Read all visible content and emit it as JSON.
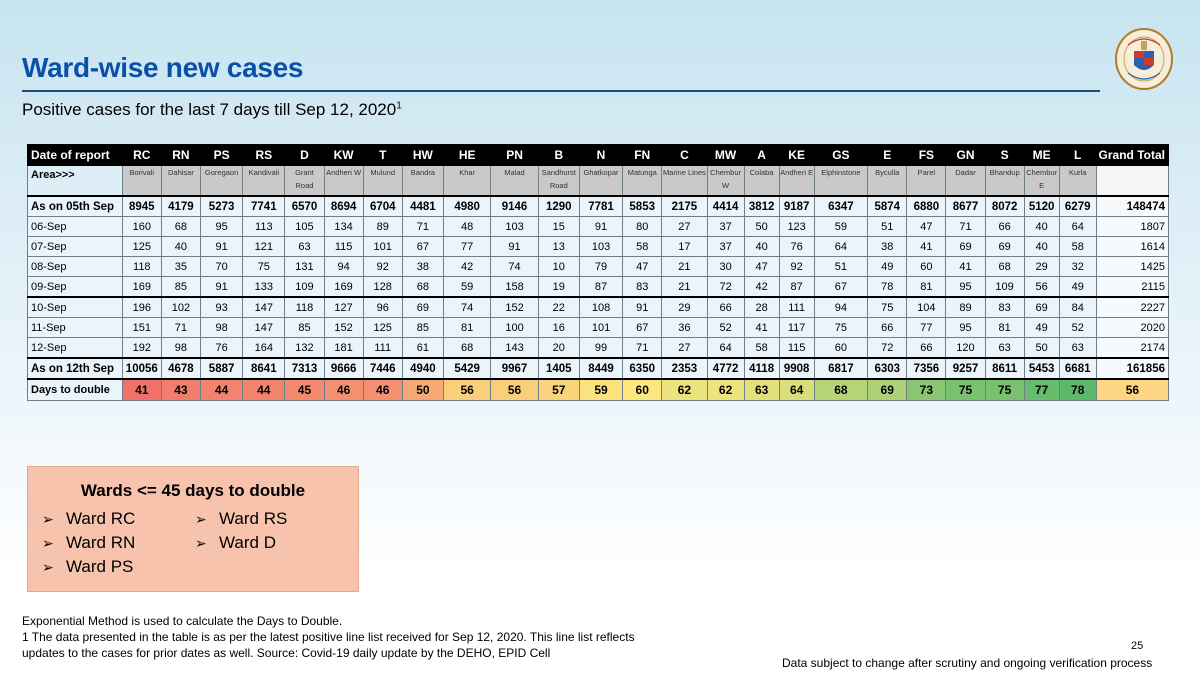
{
  "header": {
    "title": "Ward-wise new cases",
    "subtitle": "Positive cases for the last 7 days till Sep 12, 2020",
    "subtitle_footnote_marker": "1",
    "logo": "municipal-corporation-emblem"
  },
  "table": {
    "header_label": "Date of report",
    "area_label": "Area>>>",
    "grand_total_label": "Grand Total",
    "wards": [
      "RC",
      "RN",
      "PS",
      "RS",
      "D",
      "KW",
      "T",
      "HW",
      "HE",
      "PN",
      "B",
      "N",
      "FN",
      "C",
      "MW",
      "A",
      "KE",
      "GS",
      "E",
      "FS",
      "GN",
      "S",
      "ME",
      "L"
    ],
    "areas": [
      "Borivali",
      "Dahisar",
      "Goregaon",
      "Kandivali",
      "Grant Road",
      "Andheri W",
      "Mulund",
      "Bandra",
      "Khar",
      "Malad",
      "Sandhurst Road",
      "Ghatkopar",
      "Matunga",
      "Marine Lines",
      "Chembur W",
      "Colaba",
      "Andheri E",
      "Elphinstone",
      "Byculla",
      "Parel",
      "Dadar",
      "Bhandup",
      "Chembur E",
      "Kurla"
    ],
    "rows": [
      {
        "label": "As on 05th Sep",
        "values": [
          8945,
          4179,
          5273,
          7741,
          6570,
          8694,
          6704,
          4481,
          4980,
          9146,
          1290,
          7781,
          5853,
          2175,
          4414,
          3812,
          9187,
          6347,
          5874,
          6880,
          8677,
          8072,
          5120,
          6279
        ],
        "total": 148474,
        "bold": true
      },
      {
        "label": "06-Sep",
        "values": [
          160,
          68,
          95,
          113,
          105,
          134,
          89,
          71,
          48,
          103,
          15,
          91,
          80,
          27,
          37,
          50,
          123,
          59,
          51,
          47,
          71,
          66,
          40,
          64
        ],
        "total": 1807
      },
      {
        "label": "07-Sep",
        "values": [
          125,
          40,
          91,
          121,
          63,
          115,
          101,
          67,
          77,
          91,
          13,
          103,
          58,
          17,
          37,
          40,
          76,
          64,
          38,
          41,
          69,
          69,
          40,
          58
        ],
        "total": 1614
      },
      {
        "label": "08-Sep",
        "values": [
          118,
          35,
          70,
          75,
          131,
          94,
          92,
          38,
          42,
          74,
          10,
          79,
          47,
          21,
          30,
          47,
          92,
          51,
          49,
          60,
          41,
          68,
          29,
          32
        ],
        "total": 1425
      },
      {
        "label": "09-Sep",
        "values": [
          169,
          85,
          91,
          133,
          109,
          169,
          128,
          68,
          59,
          158,
          19,
          87,
          83,
          21,
          72,
          42,
          87,
          67,
          78,
          81,
          95,
          109,
          56,
          49
        ],
        "total": 2115
      },
      {
        "label": "10-Sep",
        "values": [
          196,
          102,
          93,
          147,
          118,
          127,
          96,
          69,
          74,
          152,
          22,
          108,
          91,
          29,
          66,
          28,
          111,
          94,
          75,
          104,
          89,
          83,
          69,
          84
        ],
        "total": 2227
      },
      {
        "label": "11-Sep",
        "values": [
          151,
          71,
          98,
          147,
          85,
          152,
          125,
          85,
          81,
          100,
          16,
          101,
          67,
          36,
          52,
          41,
          117,
          75,
          66,
          77,
          95,
          81,
          49,
          52
        ],
        "total": 2020
      },
      {
        "label": "12-Sep",
        "values": [
          192,
          98,
          76,
          164,
          132,
          181,
          111,
          61,
          68,
          143,
          20,
          99,
          71,
          27,
          64,
          58,
          115,
          60,
          72,
          66,
          120,
          63,
          50,
          63
        ],
        "total": 2174
      },
      {
        "label": "As on 12th Sep",
        "values": [
          10056,
          4678,
          5887,
          8641,
          7313,
          9666,
          7446,
          4940,
          5429,
          9967,
          1405,
          8449,
          6350,
          2353,
          4772,
          4118,
          9908,
          6817,
          6303,
          7356,
          9257,
          8611,
          5453,
          6681
        ],
        "total": 161856,
        "bold": true
      }
    ],
    "days_to_double": {
      "label": "Days to double",
      "values": [
        41,
        43,
        44,
        44,
        45,
        46,
        46,
        50,
        56,
        56,
        57,
        59,
        60,
        62,
        62,
        63,
        64,
        68,
        69,
        73,
        75,
        75,
        77,
        78
      ],
      "total": 56
    },
    "heat_colors": {
      "low": "#f0706a",
      "mid": "#fde880",
      "high": "#5eb86c",
      "total": "#fdd583"
    }
  },
  "callout": {
    "title": "Wards <= 45 days to double",
    "items": [
      "Ward RC",
      "Ward RN",
      "Ward PS",
      "Ward RS",
      "Ward D"
    ],
    "bullet_icon": "arrow-bullet-icon",
    "background": "#f7c3ac"
  },
  "footer": {
    "note1": "Exponential Method is used to calculate the Days to Double.",
    "note2": "1 The data presented in the table is as per the latest positive line list received for Sep 12, 2020. This line list reflects",
    "note3": "updates to the cases for prior dates as well. Source: Covid-19 daily update by the DEHO, EPID Cell",
    "page_number": "25",
    "disclaimer": "Data subject to change after scrutiny and ongoing verification process"
  }
}
